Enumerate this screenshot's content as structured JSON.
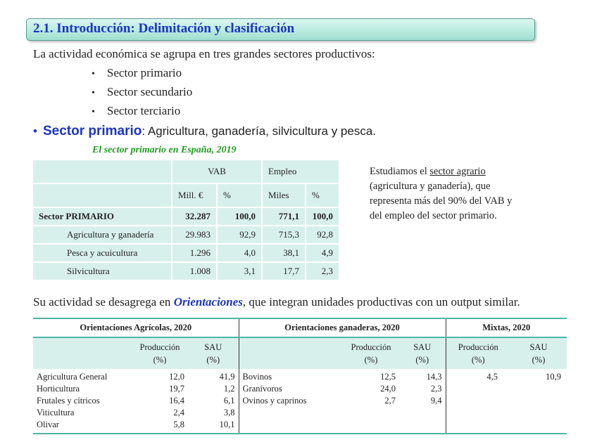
{
  "slide": {
    "title": "2.1. Introducción: Delimitación y clasificación",
    "intro": "La actividad económica se agrupa en tres grandes sectores productivos:",
    "sectors": [
      "Sector primario",
      "Sector secundario",
      "Sector terciario"
    ],
    "primary_heading": "Sector primario",
    "primary_desc": ": Agricultura, ganadería, silvicultura y pesca.",
    "table1_caption": "El sector primario en España, 2019",
    "note": {
      "before": "Estudiamos el ",
      "underlined": "sector agrario",
      "after_lines": [
        "(agricultura y ganadería), que",
        "representa más del 90% del VAB y",
        "del empleo del sector primario."
      ]
    },
    "desagrega": {
      "before": "Su actividad se desagrega en ",
      "highlight": "Orientaciones",
      "after": ", que integran unidades productivas con un output similar."
    }
  },
  "table1": {
    "group_headers": [
      "VAB",
      "Empleo"
    ],
    "col_headers": [
      "Mill. €",
      "%",
      "Miles",
      "%"
    ],
    "rows": [
      {
        "label": "Sector PRIMARIO",
        "vals": [
          "32.287",
          "100,0",
          "771,1",
          "100,0"
        ]
      },
      {
        "label": "Agricultura y ganadería",
        "vals": [
          "29.983",
          "92,9",
          "715,3",
          "92,8"
        ]
      },
      {
        "label": "Pesca y acuicultura",
        "vals": [
          "1.296",
          "4,0",
          "38,1",
          "4,9"
        ]
      },
      {
        "label": "Silvicultura",
        "vals": [
          "1.008",
          "3,1",
          "17,7",
          "2,3"
        ]
      }
    ]
  },
  "table2": {
    "groups": [
      "Orientaciones Agrícolas, 2020",
      "Orientaciones ganaderas, 2020",
      "Mixtas, 2020"
    ],
    "sub_prod": [
      "Producción",
      "(%)"
    ],
    "sub_sau": [
      "SAU",
      "(%)"
    ],
    "agricolas": [
      {
        "name": "Agricultura General",
        "prod": "12,0",
        "sau": "41,9"
      },
      {
        "name": "Horticultura",
        "prod": "19,7",
        "sau": "1,2"
      },
      {
        "name": "Frutales y cítricos",
        "prod": "16,4",
        "sau": "6,1"
      },
      {
        "name": "Viticultura",
        "prod": "2,4",
        "sau": "3,8"
      },
      {
        "name": "Olivar",
        "prod": "5,8",
        "sau": "10,1"
      }
    ],
    "ganaderas": [
      {
        "name": "Bovinos",
        "prod": "12,5",
        "sau": "14,3"
      },
      {
        "name": "Granívoros",
        "prod": "24,0",
        "sau": "2,3"
      },
      {
        "name": "Ovinos y caprinos",
        "prod": "2,7",
        "sau": "9,4"
      }
    ],
    "mixtas": {
      "prod": "4,5",
      "sau": "10,9"
    }
  }
}
